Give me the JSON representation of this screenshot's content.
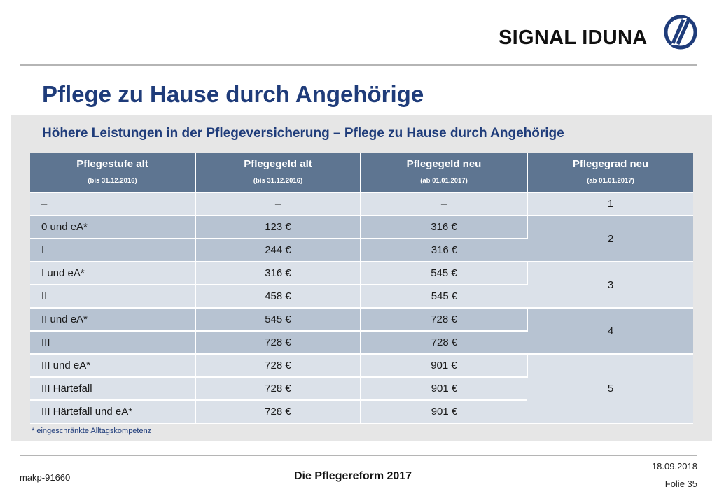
{
  "brand": {
    "name": "SIGNAL IDUNA"
  },
  "slide": {
    "title": "Pflege zu Hause durch Angehörige"
  },
  "panel": {
    "title": "Höhere Leistungen in der Pflegeversicherung – Pflege zu Hause durch Angehörige",
    "columns": [
      {
        "label": "Pflegestufe alt",
        "sub": "(bis 31.12.2016)"
      },
      {
        "label": "Pflegegeld alt",
        "sub": "(bis 31.12.2016)"
      },
      {
        "label": "Pflegegeld neu",
        "sub": "(ab 01.01.2017)"
      },
      {
        "label": "Pflegegrad neu",
        "sub": "(ab 01.01.2017)"
      }
    ],
    "rows": [
      {
        "stufe": "–",
        "alt": "–",
        "neu": "–"
      },
      {
        "stufe": "0 und eA*",
        "alt": "123 €",
        "neu": "316 €"
      },
      {
        "stufe": "I",
        "alt": "244 €",
        "neu": "316 €"
      },
      {
        "stufe": "I und eA*",
        "alt": "316 €",
        "neu": "545 €"
      },
      {
        "stufe": "II",
        "alt": "458 €",
        "neu": "545 €"
      },
      {
        "stufe": "II und eA*",
        "alt": "545 €",
        "neu": "728 €"
      },
      {
        "stufe": "III",
        "alt": "728 €",
        "neu": "728 €"
      },
      {
        "stufe": "III und eA*",
        "alt": "728 €",
        "neu": "901 €"
      },
      {
        "stufe": "III Härtefall",
        "alt": "728 €",
        "neu": "901 €"
      },
      {
        "stufe": "III Härtefall und eA*",
        "alt": "728 €",
        "neu": "901 €"
      }
    ],
    "grades": [
      "1",
      "2",
      "3",
      "4",
      "5"
    ],
    "footnote": "* eingeschränkte Alltagskompetenz"
  },
  "footer": {
    "code": "makp-91660",
    "topic": "Die Pflegereform 2017",
    "date": "18.09.2018",
    "slide_number": "Folie 35"
  },
  "colors": {
    "title_blue": "#1f3c7a",
    "header_slate": "#5e7591",
    "row_light": "#dbe1e9",
    "row_dark": "#b7c3d2"
  }
}
